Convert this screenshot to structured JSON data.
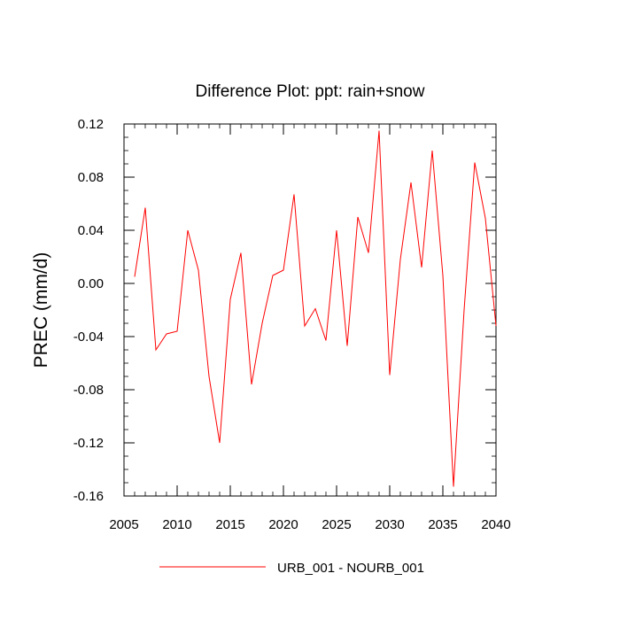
{
  "chart_data": {
    "type": "line",
    "title": "Difference Plot: ppt: rain+snow",
    "xlabel": "",
    "ylabel": "PREC  (mm/d)",
    "xlim": [
      2005,
      2040
    ],
    "ylim": [
      -0.16,
      0.12
    ],
    "x_ticks": [
      2005,
      2010,
      2015,
      2020,
      2025,
      2030,
      2035,
      2040
    ],
    "x_tick_labels": [
      "2005",
      "2010",
      "2015",
      "2020",
      "2025",
      "2030",
      "2035",
      "2040"
    ],
    "y_ticks": [
      -0.16,
      -0.12,
      -0.08,
      -0.04,
      0.0,
      0.04,
      0.08,
      0.12
    ],
    "y_tick_labels": [
      "-0.16",
      "-0.12",
      "-0.08",
      "-0.04",
      "0.00",
      "0.04",
      "0.08",
      "0.12"
    ],
    "grid": false,
    "legend_position": "bottom",
    "series": [
      {
        "name": "URB_001 - NOURB_001",
        "color": "#ff0000",
        "x": [
          2006,
          2007,
          2008,
          2009,
          2010,
          2011,
          2012,
          2013,
          2014,
          2015,
          2016,
          2017,
          2018,
          2019,
          2020,
          2021,
          2022,
          2023,
          2024,
          2025,
          2026,
          2027,
          2028,
          2029,
          2030,
          2031,
          2032,
          2033,
          2034,
          2035,
          2036,
          2037,
          2038,
          2039,
          2040
        ],
        "values": [
          0.005,
          0.057,
          -0.05,
          -0.038,
          -0.036,
          0.04,
          0.01,
          -0.07,
          -0.12,
          -0.012,
          0.023,
          -0.076,
          -0.03,
          0.006,
          0.01,
          0.067,
          -0.032,
          -0.019,
          -0.043,
          0.04,
          -0.047,
          0.05,
          0.023,
          0.115,
          -0.069,
          0.018,
          0.076,
          0.012,
          0.1,
          0.006,
          -0.153,
          -0.02,
          0.091,
          0.049,
          -0.032
        ]
      }
    ]
  }
}
